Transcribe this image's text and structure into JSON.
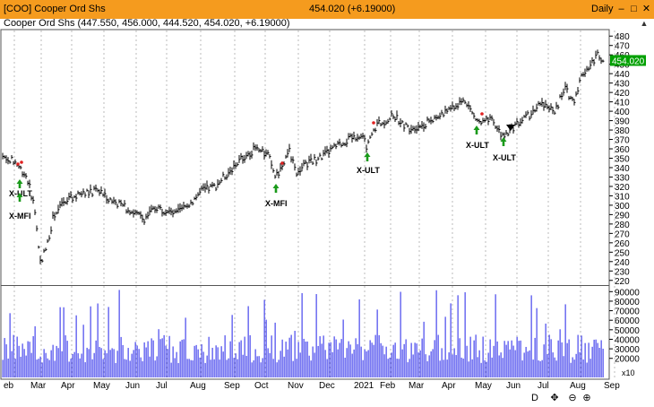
{
  "window": {
    "title": "[COO] Cooper Ord Shs",
    "last_price": "454.020 (+6.19000)",
    "period": "Daily",
    "buttons": {
      "minimize": "–",
      "maximize": "□",
      "close": "✕"
    }
  },
  "info_line": "Cooper Ord Shs (447.550, 456.000, 444.520, 454.020, +6.19000)",
  "price_scale": {
    "ticks": [
      "480",
      "470",
      "460",
      "450",
      "440",
      "430",
      "420",
      "410",
      "400",
      "390",
      "380",
      "370",
      "360",
      "350",
      "340",
      "330",
      "320",
      "310",
      "300",
      "290",
      "280",
      "270",
      "260",
      "250",
      "240",
      "230",
      "220"
    ],
    "last_price_label": "454.020"
  },
  "volume_scale": {
    "ticks": [
      "90000",
      "80000",
      "70000",
      "60000",
      "50000",
      "40000",
      "30000",
      "20000"
    ],
    "multiplier": "x10"
  },
  "x_axis": {
    "labels": [
      "eb",
      "Mar",
      "Apr",
      "May",
      "Jun",
      "Jul",
      "Aug",
      "Sep",
      "Oct",
      "Nov",
      "Dec",
      "2021",
      "Feb",
      "Mar",
      "Apr",
      "May",
      "Jun",
      "Jul",
      "Aug",
      "Sep"
    ]
  },
  "signals": [
    {
      "label": "X-ULT"
    },
    {
      "label": "X-MFI"
    },
    {
      "label": "X-MFI"
    },
    {
      "label": "X-ULT"
    },
    {
      "label": "X-ULT"
    },
    {
      "label": "X-ULT"
    }
  ],
  "chart_data": {
    "type": "bar",
    "series": [
      {
        "kind": "price_ohlc_close_approx",
        "ylim": [
          215,
          485
        ]
      },
      {
        "kind": "volume",
        "ylim": [
          0,
          95000
        ]
      }
    ]
  },
  "nav_buttons": [
    {
      "name": "period-daily",
      "label": "D"
    },
    {
      "name": "pan",
      "label": "✥"
    },
    {
      "name": "zoom-out",
      "label": "⊖"
    },
    {
      "name": "zoom-in",
      "label": "⊕"
    }
  ],
  "colors": {
    "title_bar": "#f59b1e",
    "volume": "#5555ee",
    "buy_arrow": "#1a9a1a",
    "sell_dot": "#e02020",
    "last_price_bg": "#00a000"
  }
}
